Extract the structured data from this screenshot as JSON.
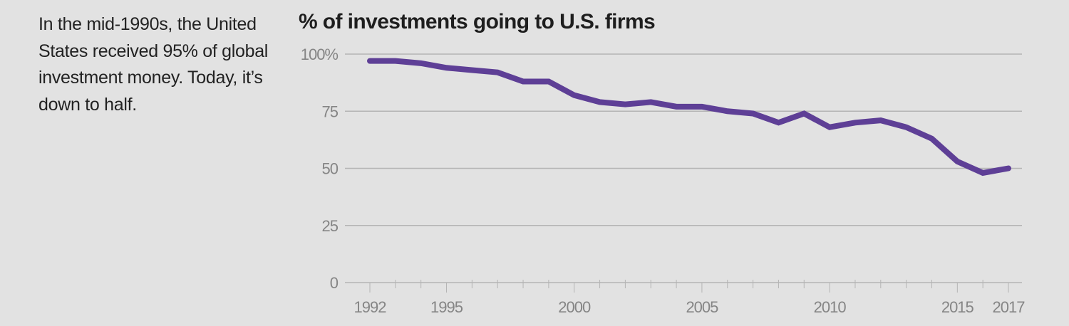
{
  "caption": "In the mid-1990s, the United States received 95% of global investment money. Today, it’s down to half.",
  "colors": {
    "background": "#e2e2e2",
    "line": "#5e3f96",
    "grid": "#b4b4b4",
    "axis_text": "#858585"
  },
  "chart_data": {
    "type": "line",
    "title": "% of investments going to U.S. firms",
    "xlabel": "",
    "ylabel": "",
    "x": [
      1992,
      1993,
      1994,
      1995,
      1996,
      1997,
      1998,
      1999,
      2000,
      2001,
      2002,
      2003,
      2004,
      2005,
      2006,
      2007,
      2008,
      2009,
      2010,
      2011,
      2012,
      2013,
      2014,
      2015,
      2016,
      2017
    ],
    "series": [
      {
        "name": "% of investments going to U.S. firms",
        "values": [
          97,
          97,
          96,
          94,
          93,
          92,
          88,
          88,
          82,
          79,
          78,
          79,
          77,
          77,
          75,
          74,
          70,
          74,
          68,
          70,
          71,
          68,
          63,
          53,
          48,
          50
        ]
      }
    ],
    "ylim": [
      0,
      100
    ],
    "xlim": [
      1992,
      2017
    ],
    "y_ticks": [
      {
        "value": 100,
        "label": "100%"
      },
      {
        "value": 75,
        "label": "75"
      },
      {
        "value": 50,
        "label": "50"
      },
      {
        "value": 25,
        "label": "25"
      },
      {
        "value": 0,
        "label": "0"
      }
    ],
    "x_ticks": [
      {
        "value": 1992,
        "label": "1992"
      },
      {
        "value": 1995,
        "label": "1995"
      },
      {
        "value": 2000,
        "label": "2000"
      },
      {
        "value": 2005,
        "label": "2005"
      },
      {
        "value": 2010,
        "label": "2010"
      },
      {
        "value": 2015,
        "label": "2015"
      },
      {
        "value": 2017,
        "label": "2017"
      }
    ],
    "grid": true,
    "legend": "none"
  }
}
